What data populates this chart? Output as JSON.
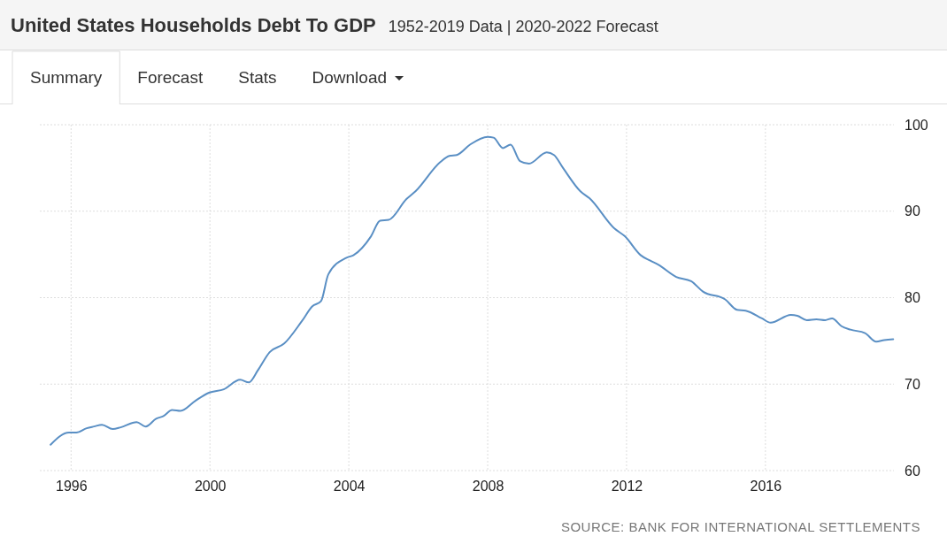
{
  "chart_data": {
    "type": "line",
    "title": "United States Households Debt To GDP",
    "subtitle": "1952-2019 Data | 2020-2022 Forecast",
    "annotations": [
      "Summary",
      "Forecast",
      "Stats",
      "Download",
      "SOURCE: BANK FOR INTERNATIONAL SETTLEMENTS"
    ],
    "xlim": [
      1995.1,
      2019.7
    ],
    "xticks": [
      1996,
      2000,
      2004,
      2008,
      2012,
      2016
    ],
    "ylim": [
      60,
      100
    ],
    "yticks": [
      60,
      70,
      80,
      90,
      100
    ],
    "grid": true,
    "marker": "none",
    "line_style": "solid",
    "series": [
      {
        "color": "#5a8fc4",
        "x": [
          1995.41,
          1995.94,
          1996.15,
          1996.45,
          1996.66,
          1996.89,
          1997.2,
          1997.43,
          1997.89,
          1998.15,
          1998.45,
          1998.66,
          1998.91,
          1999.15,
          1999.59,
          1999.97,
          2000.4,
          2000.87,
          2001.12,
          2001.38,
          2001.72,
          2002.14,
          2002.65,
          2002.95,
          2003.2,
          2003.41,
          2003.92,
          2004.13,
          2004.64,
          2004.9,
          2005.15,
          2005.66,
          2005.92,
          2006.64,
          2006.9,
          2007.11,
          2007.49,
          2008.0,
          2008.17,
          2008.44,
          2008.66,
          2008.93,
          2009.19,
          2009.7,
          2009.91,
          2010.17,
          2010.67,
          2010.93,
          2011.65,
          2011.95,
          2012.41,
          2012.67,
          2012.92,
          2013.43,
          2013.86,
          2014.2,
          2014.84,
          2015.18,
          2015.43,
          2015.9,
          2016.15,
          2016.73,
          2016.92,
          2017.19,
          2017.47,
          2017.72,
          2017.92,
          2018.19,
          2018.45,
          2018.87,
          2019.19,
          2019.42,
          2019.68
        ],
        "values": [
          63.0,
          64.4,
          64.4,
          64.9,
          65.1,
          65.3,
          64.8,
          65.0,
          65.6,
          65.1,
          66.0,
          66.3,
          67.0,
          66.9,
          68.1,
          69.0,
          69.4,
          70.5,
          70.2,
          71.6,
          73.7,
          74.7,
          77.3,
          79.0,
          79.6,
          82.7,
          84.6,
          84.9,
          87.1,
          88.9,
          89.0,
          91.4,
          92.3,
          95.7,
          96.4,
          96.5,
          97.7,
          98.6,
          98.5,
          97.3,
          97.7,
          95.8,
          95.5,
          96.8,
          96.5,
          95.0,
          92.3,
          91.5,
          88.0,
          87.1,
          84.9,
          84.3,
          83.8,
          82.4,
          81.9,
          80.7,
          79.8,
          78.6,
          78.5,
          77.6,
          77.1,
          78.0,
          77.9,
          77.4,
          77.5,
          77.4,
          77.6,
          76.7,
          76.3,
          75.9,
          74.9,
          75.1,
          75.2
        ]
      }
    ]
  }
}
